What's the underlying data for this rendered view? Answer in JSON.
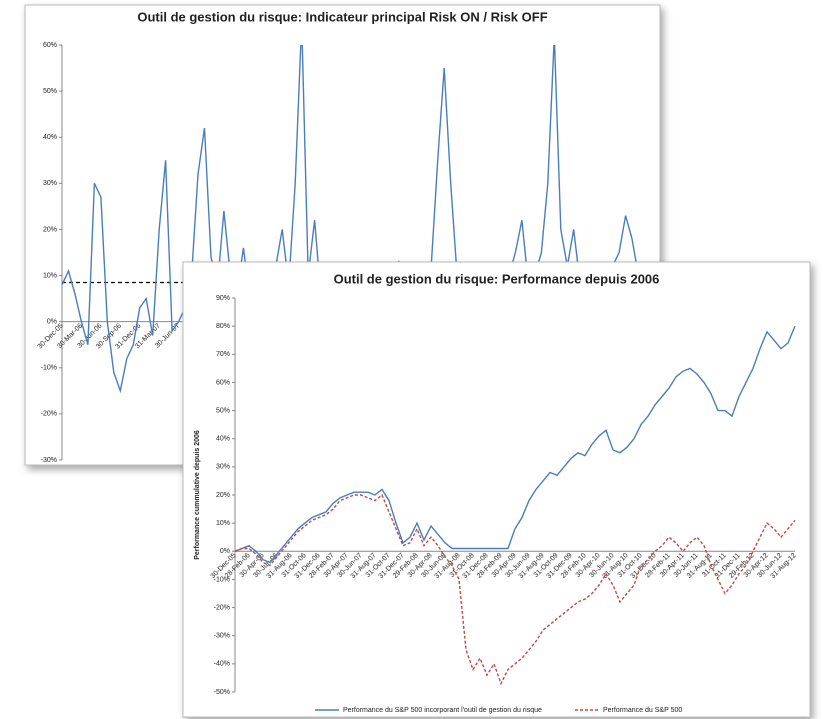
{
  "chart_data": [
    {
      "type": "line",
      "title": "Outil de gestion du risque: Indicateur principal Risk ON / Risk OFF",
      "categories": [
        "30-Dec-05",
        null,
        null,
        "30-Mar-06",
        null,
        null,
        "30-Jun-06",
        null,
        null,
        "30-Sep-06",
        null,
        null,
        "31-Dec-06",
        null,
        null,
        "31-Mar-07",
        null,
        null,
        "30-Jun-07",
        null,
        null,
        null,
        null,
        null,
        null,
        null,
        null,
        null,
        null,
        null,
        null,
        null,
        null,
        null,
        null,
        null,
        null,
        null,
        null,
        null,
        null,
        null,
        null,
        null,
        null,
        null,
        null,
        null,
        null,
        null,
        null,
        null,
        null,
        null,
        null,
        null,
        null,
        null,
        null,
        null,
        null,
        null,
        null,
        null,
        null,
        null,
        null,
        null,
        null,
        null,
        null,
        null,
        null,
        null,
        null,
        null,
        null,
        null,
        null,
        null,
        null,
        null,
        null,
        null,
        null,
        null,
        null,
        null,
        null,
        null,
        null
      ],
      "series": [
        {
          "color": "#4a7ebb",
          "values": [
            8,
            11,
            6,
            0,
            -5,
            30,
            27,
            0,
            -11,
            -15,
            -8,
            -5,
            3,
            5,
            -3,
            20,
            35,
            -2,
            0,
            3,
            10,
            32,
            42,
            14,
            8,
            24,
            10,
            6,
            16,
            5,
            4,
            6,
            8,
            12,
            20,
            8,
            30,
            65,
            10,
            22,
            5,
            6,
            7,
            8,
            8,
            9,
            10,
            12,
            9,
            8,
            10,
            11,
            13,
            9,
            8,
            10,
            7,
            12,
            35,
            55,
            30,
            10,
            8,
            9,
            7,
            10,
            8,
            9,
            12,
            10,
            15,
            22,
            8,
            10,
            15,
            30,
            62,
            20,
            12,
            20,
            8,
            9,
            7,
            10,
            8,
            12,
            15,
            23,
            18,
            10,
            8
          ]
        }
      ],
      "reference_line": 8.5,
      "ylim": [
        -30,
        60
      ],
      "yticks": [
        {
          "value": 60,
          "label": "60%"
        },
        {
          "value": 50,
          "label": "50%"
        },
        {
          "value": 40,
          "label": "40%"
        },
        {
          "value": 30,
          "label": "30%"
        },
        {
          "value": 20,
          "label": "20%"
        },
        {
          "value": 10,
          "label": "10%"
        },
        {
          "value": 0,
          "label": "0%"
        },
        {
          "value": -10,
          "label": "-10%"
        },
        {
          "value": -20,
          "label": "-20%"
        },
        {
          "value": -30,
          "label": "-30%"
        }
      ]
    },
    {
      "type": "line",
      "title": "Outil de gestion du risque: Performance depuis 2006",
      "ylabel": "Performance cummulative depuis 2006",
      "categories": [
        "30-Dec-05",
        null,
        "28-Feb-06",
        null,
        "30-Apr-06",
        null,
        "30-Jun-06",
        null,
        "31-Aug-06",
        null,
        "31-Oct-06",
        null,
        "31-Dec-06",
        null,
        "28-Feb-07",
        null,
        "30-Apr-07",
        null,
        "30-Jun-07",
        null,
        "31-Aug-07",
        null,
        "31-Oct-07",
        null,
        "31-Dec-07",
        null,
        "29-Feb-08",
        null,
        "30-Apr-08",
        null,
        "30-Jun-08",
        null,
        "31-Aug-08",
        null,
        "31-Oct-08",
        null,
        "31-Dec-08",
        null,
        "28-Feb-09",
        null,
        "30-Apr-09",
        null,
        "30-Jun-09",
        null,
        "31-Aug-09",
        null,
        "31-Oct-09",
        null,
        "31-Dec-09",
        null,
        "28-Feb-10",
        null,
        "30-Apr-10",
        null,
        "30-Jun-10",
        null,
        "31-Aug-10",
        null,
        "31-Oct-10",
        null,
        "31-Dec-10",
        null,
        "28-Feb-11",
        null,
        "30-Apr-11",
        null,
        "30-Jun-11",
        null,
        "31-Aug-11",
        null,
        "31-Oct-11",
        null,
        "31-Dec-11",
        null,
        "29-Feb-12",
        null,
        "30-Apr-12",
        null,
        "30-Jun-12",
        null,
        "31-Aug-12"
      ],
      "series": [
        {
          "name": "Performance du S&P 500 incorporant l'outil de gestion du risque",
          "color": "#4a7ebb",
          "dash": false,
          "values": [
            0,
            1,
            2,
            0,
            -3,
            -4,
            -1,
            2,
            5,
            8,
            10,
            12,
            13,
            14,
            17,
            19,
            20,
            21,
            21,
            21,
            20,
            22,
            18,
            10,
            3,
            5,
            10,
            4,
            9,
            6,
            3,
            1,
            1,
            1,
            1,
            1,
            1,
            1,
            1,
            1,
            8,
            12,
            18,
            22,
            25,
            28,
            27,
            30,
            33,
            35,
            34,
            38,
            41,
            43,
            36,
            35,
            37,
            40,
            45,
            48,
            52,
            55,
            58,
            62,
            64,
            65,
            63,
            60,
            56,
            50,
            50,
            48,
            55,
            60,
            65,
            72,
            78,
            75,
            72,
            74,
            80
          ]
        },
        {
          "name": "Performance du S&P 500",
          "color": "#be4b48",
          "dash": true,
          "values": [
            0,
            1,
            1,
            -1,
            -4,
            -5,
            -2,
            1,
            4,
            7,
            9,
            11,
            12,
            13,
            15,
            18,
            19,
            20,
            20,
            19,
            18,
            20,
            14,
            8,
            2,
            3,
            8,
            2,
            5,
            2,
            -2,
            -5,
            -10,
            -35,
            -42,
            -38,
            -44,
            -40,
            -47,
            -42,
            -40,
            -38,
            -35,
            -32,
            -28,
            -26,
            -24,
            -22,
            -20,
            -18,
            -17,
            -15,
            -12,
            -8,
            -12,
            -18,
            -15,
            -12,
            -5,
            -3,
            0,
            2,
            5,
            3,
            0,
            3,
            5,
            2,
            -5,
            -10,
            -15,
            -12,
            -8,
            -5,
            0,
            5,
            10,
            8,
            5,
            8,
            11
          ]
        }
      ],
      "ylim": [
        -50,
        90
      ],
      "yticks": [
        {
          "value": 90,
          "label": "90%"
        },
        {
          "value": 80,
          "label": "80%"
        },
        {
          "value": 70,
          "label": "70%"
        },
        {
          "value": 60,
          "label": "60%"
        },
        {
          "value": 50,
          "label": "50%"
        },
        {
          "value": 40,
          "label": "40%"
        },
        {
          "value": 30,
          "label": "30%"
        },
        {
          "value": 20,
          "label": "20%"
        },
        {
          "value": 10,
          "label": "10%"
        },
        {
          "value": 0,
          "label": "0%"
        },
        {
          "value": -10,
          "label": "-10%"
        },
        {
          "value": -20,
          "label": "-20%"
        },
        {
          "value": -30,
          "label": "-30%"
        },
        {
          "value": -40,
          "label": "-40%"
        },
        {
          "value": -50,
          "label": "-50%"
        }
      ]
    }
  ]
}
